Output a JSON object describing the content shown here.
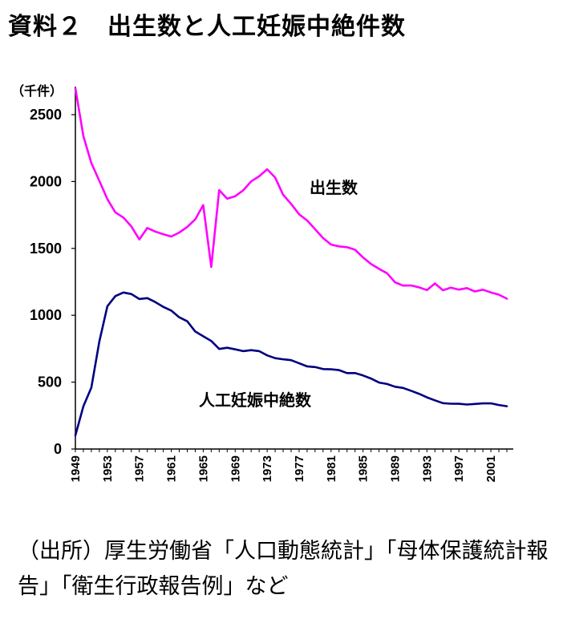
{
  "title": "資料２　出生数と人工妊娠中絶件数",
  "source_note": "（出所）厚生労働省「人口動態統計」「母体保護統計報告」「衛生行政報告例」など",
  "chart_data": {
    "type": "line",
    "y_unit": "（千件）",
    "ylim": [
      0,
      2500
    ],
    "yticks": [
      0,
      500,
      1000,
      1500,
      2000,
      2500
    ],
    "xlim": [
      1949,
      2003
    ],
    "xticks": [
      1949,
      1953,
      1957,
      1961,
      1965,
      1969,
      1973,
      1977,
      1981,
      1985,
      1989,
      1993,
      1997,
      2001
    ],
    "grid": false,
    "x": [
      1949,
      1950,
      1951,
      1952,
      1953,
      1954,
      1955,
      1956,
      1957,
      1958,
      1959,
      1960,
      1961,
      1962,
      1963,
      1964,
      1965,
      1966,
      1967,
      1968,
      1969,
      1970,
      1971,
      1972,
      1973,
      1974,
      1975,
      1976,
      1977,
      1978,
      1979,
      1980,
      1981,
      1982,
      1983,
      1984,
      1985,
      1986,
      1987,
      1988,
      1989,
      1990,
      1991,
      1992,
      1993,
      1994,
      1995,
      1996,
      1997,
      1998,
      1999,
      2000,
      2001,
      2002,
      2003
    ],
    "series": [
      {
        "name": "出生数",
        "color": "#ff00ff",
        "values": [
          2697,
          2338,
          2138,
          2005,
          1868,
          1770,
          1731,
          1665,
          1567,
          1653,
          1626,
          1606,
          1589,
          1619,
          1660,
          1717,
          1824,
          1361,
          1936,
          1872,
          1890,
          1934,
          2001,
          2039,
          2092,
          2030,
          1901,
          1833,
          1755,
          1709,
          1643,
          1577,
          1529,
          1515,
          1509,
          1490,
          1432,
          1383,
          1347,
          1314,
          1247,
          1222,
          1223,
          1209,
          1188,
          1238,
          1187,
          1207,
          1192,
          1203,
          1178,
          1191,
          1171,
          1154,
          1124
        ],
        "label_color": "#000000"
      },
      {
        "name": "人工妊娠中絶数",
        "color": "#000080",
        "values": [
          102,
          320,
          459,
          805,
          1068,
          1143,
          1170,
          1159,
          1122,
          1128,
          1099,
          1063,
          1035,
          985,
          955,
          879,
          843,
          808,
          748,
          757,
          745,
          732,
          739,
          732,
          700,
          679,
          671,
          664,
          641,
          618,
          613,
          598,
          596,
          590,
          568,
          568,
          550,
          527,
          497,
          486,
          466,
          457,
          436,
          413,
          386,
          364,
          343,
          339,
          338,
          333,
          337,
          341,
          342,
          329,
          320
        ]
      }
    ]
  }
}
